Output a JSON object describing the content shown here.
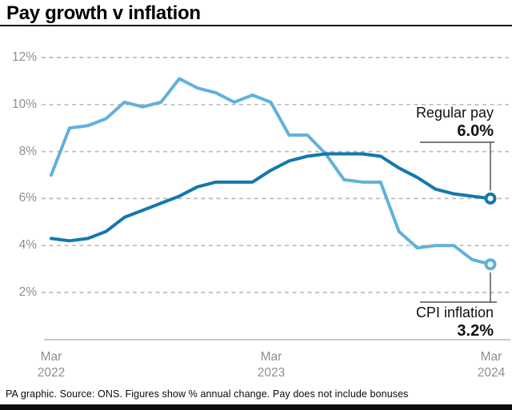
{
  "title": "Pay growth v inflation",
  "footer": "PA graphic. Source: ONS. Figures show % annual change. Pay does not include bonuses",
  "colors": {
    "regular_pay": "#1278ad",
    "cpi": "#61b1dc",
    "grid": "#bdbdbd",
    "axis": "#b5b5b5",
    "tick_text": "#8f8f8f",
    "callout": "#4d4d4d",
    "endpoint_fill": "#ffffff"
  },
  "chart_data": {
    "type": "line",
    "title": "Pay growth v inflation",
    "xlabel": "",
    "ylabel": "% annual change",
    "grid": "horizontal-dashed",
    "ylim": [
      2,
      12
    ],
    "x": [
      "Mar 2022",
      "Apr 2022",
      "May 2022",
      "Jun 2022",
      "Jul 2022",
      "Aug 2022",
      "Sep 2022",
      "Oct 2022",
      "Nov 2022",
      "Dec 2022",
      "Jan 2023",
      "Feb 2023",
      "Mar 2023",
      "Apr 2023",
      "May 2023",
      "Jun 2023",
      "Jul 2023",
      "Aug 2023",
      "Sep 2023",
      "Oct 2023",
      "Nov 2023",
      "Dec 2023",
      "Jan 2024",
      "Feb 2024",
      "Mar 2024"
    ],
    "series": [
      {
        "name": "Regular pay",
        "color": "#1278ad",
        "end_label": "6.0%",
        "values": [
          4.3,
          4.2,
          4.3,
          4.6,
          5.2,
          5.5,
          5.8,
          6.1,
          6.5,
          6.7,
          6.7,
          6.7,
          7.2,
          7.6,
          7.8,
          7.9,
          7.9,
          7.9,
          7.8,
          7.3,
          6.9,
          6.4,
          6.2,
          6.1,
          6.0
        ]
      },
      {
        "name": "CPI inflation",
        "color": "#61b1dc",
        "end_label": "3.2%",
        "values": [
          7.0,
          9.0,
          9.1,
          9.4,
          10.1,
          9.9,
          10.1,
          11.1,
          10.7,
          10.5,
          10.1,
          10.4,
          10.1,
          8.7,
          8.7,
          7.9,
          6.8,
          6.7,
          6.7,
          4.6,
          3.9,
          4.0,
          4.0,
          3.4,
          3.2
        ]
      }
    ],
    "yticks": [
      {
        "value": 12,
        "label": "12%"
      },
      {
        "value": 10,
        "label": "10%"
      },
      {
        "value": 8,
        "label": "8%"
      },
      {
        "value": 6,
        "label": "6%"
      },
      {
        "value": 4,
        "label": "4%"
      },
      {
        "value": 2,
        "label": "2%"
      }
    ],
    "xticks": [
      {
        "month": "Mar",
        "year": "2022"
      },
      {
        "month": "Mar",
        "year": "2023"
      },
      {
        "month": "Mar",
        "year": "2024"
      }
    ],
    "annotations": [
      {
        "label": "Regular pay",
        "value_label": "6.0%"
      },
      {
        "label": "CPI inflation",
        "value_label": "3.2%"
      }
    ]
  }
}
